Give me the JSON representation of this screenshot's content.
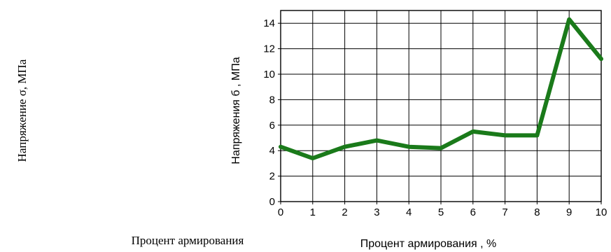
{
  "outer_labels": {
    "y": "Напряжение σ, МПа",
    "x": "Процент армирования"
  },
  "chart_data": {
    "type": "line",
    "xlabel": "Процент армирования , %",
    "ylabel": "Напряжения б , МПа",
    "x_ticks": [
      "0",
      "1",
      "2",
      "3",
      "4",
      "5",
      "6",
      "7",
      "8",
      "9",
      "10"
    ],
    "y_ticks": [
      "0",
      "2",
      "4",
      "6",
      "8",
      "10",
      "12",
      "14"
    ],
    "xlim": [
      0,
      10
    ],
    "ylim": [
      0,
      15
    ],
    "grid": true,
    "series": [
      {
        "color": "#1a7a1a",
        "x": [
          0,
          1,
          2,
          3,
          4,
          5,
          6,
          7,
          8,
          9,
          10
        ],
        "y": [
          4.3,
          3.4,
          4.3,
          4.8,
          4.3,
          4.2,
          5.5,
          5.2,
          5.2,
          14.3,
          11.2
        ]
      }
    ]
  }
}
